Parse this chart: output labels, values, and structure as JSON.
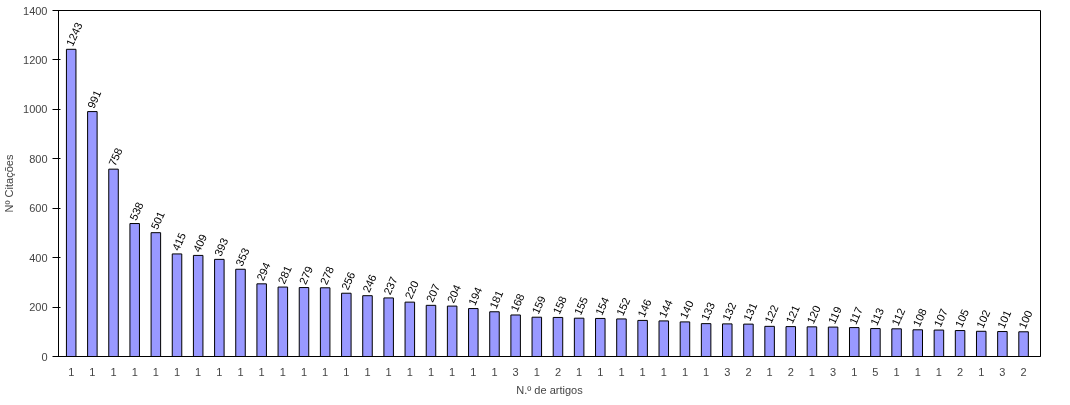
{
  "chart_data": {
    "type": "bar",
    "xlabel": "N.º de artigos",
    "ylabel": "Nº Citações",
    "categories": [
      "1",
      "1",
      "1",
      "1",
      "1",
      "1",
      "1",
      "1",
      "1",
      "1",
      "1",
      "1",
      "1",
      "1",
      "1",
      "1",
      "1",
      "1",
      "1",
      "1",
      "1",
      "3",
      "1",
      "2",
      "1",
      "1",
      "1",
      "1",
      "1",
      "1",
      "1",
      "3",
      "2",
      "1",
      "2",
      "1",
      "3",
      "1",
      "5",
      "1",
      "1",
      "1",
      "2",
      "1",
      "3",
      "2"
    ],
    "values": [
      1243,
      991,
      758,
      538,
      501,
      415,
      409,
      393,
      353,
      294,
      281,
      279,
      278,
      256,
      246,
      237,
      220,
      207,
      204,
      194,
      181,
      168,
      159,
      158,
      155,
      154,
      152,
      146,
      144,
      140,
      133,
      132,
      131,
      122,
      121,
      120,
      119,
      117,
      113,
      112,
      108,
      107,
      105,
      102,
      101,
      100
    ],
    "color": "#9999ff",
    "ylim": [
      0,
      1400
    ],
    "yticks": [
      0,
      200,
      400,
      600,
      800,
      1000,
      1200,
      1400
    ],
    "grid": false,
    "data_labels": true
  }
}
